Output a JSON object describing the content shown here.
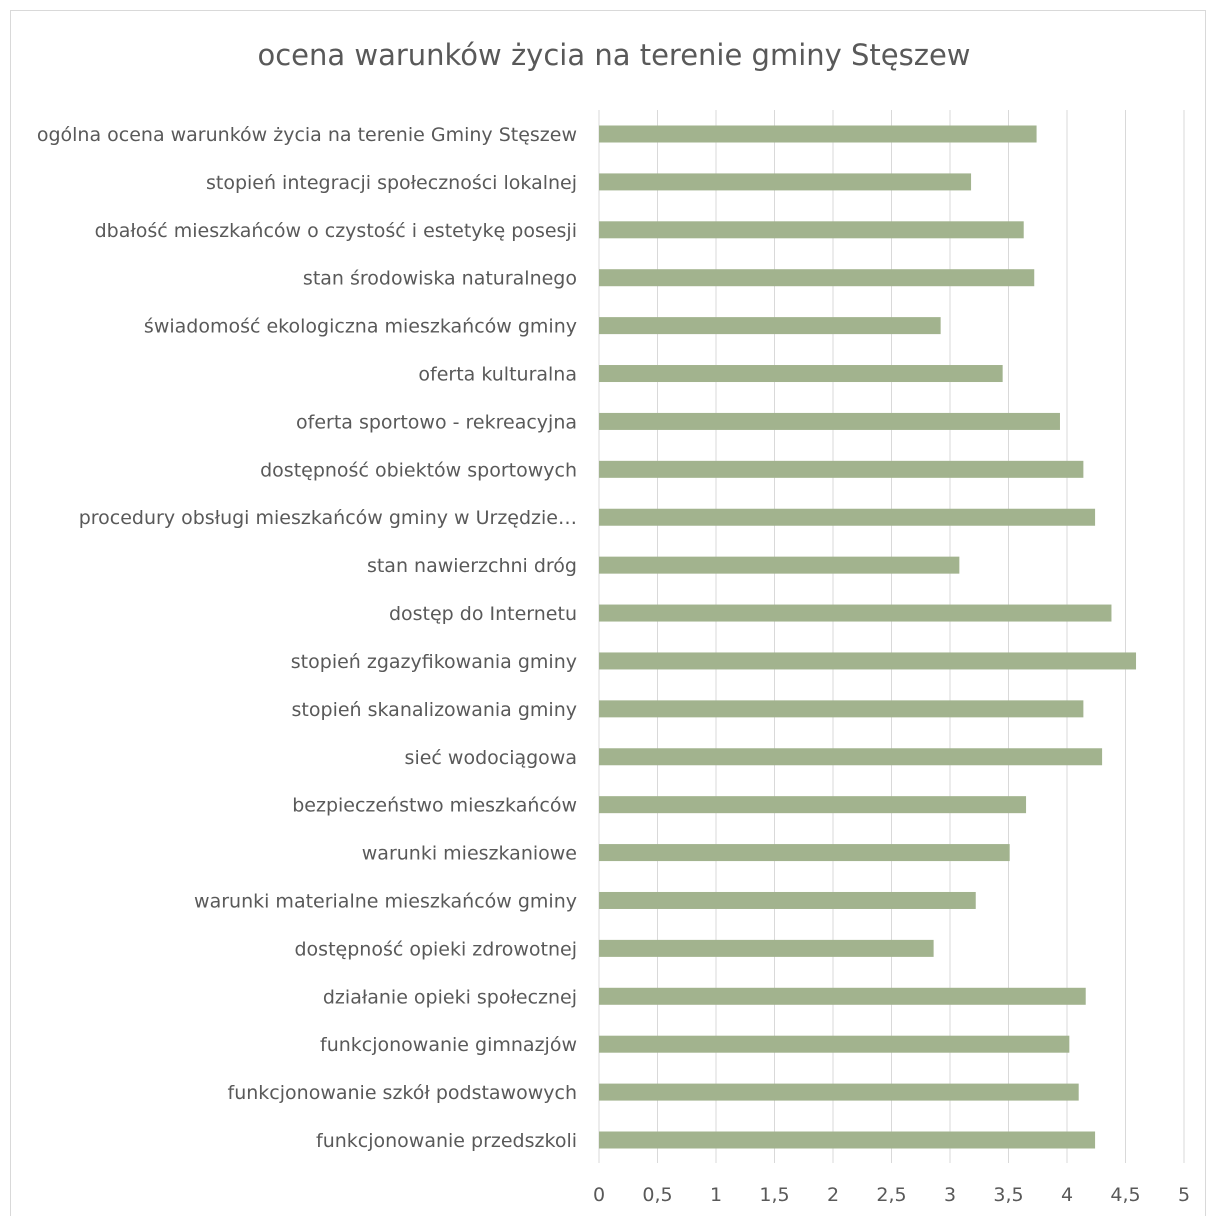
{
  "chart_data": {
    "type": "bar",
    "orientation": "horizontal",
    "title": "ocena warunków życia na terenie gminy Stęszew",
    "xlabel": "",
    "ylabel": "",
    "xlim": [
      0,
      5
    ],
    "x_ticks": [
      "0",
      "0,5",
      "1",
      "1,5",
      "2",
      "2,5",
      "3",
      "3,5",
      "4",
      "4,5",
      "5"
    ],
    "x_tick_values": [
      0,
      0.5,
      1,
      1.5,
      2,
      2.5,
      3,
      3.5,
      4,
      4.5,
      5
    ],
    "grid": "vertical",
    "legend": "none",
    "bar_color": "#a2b38e",
    "categories": [
      "ogólna ocena warunków życia na terenie Gminy Stęszew",
      "stopień integracji społeczności lokalnej",
      "dbałość mieszkańców o czystość i estetykę posesji",
      "stan środowiska naturalnego",
      "świadomość ekologiczna mieszkańców gminy",
      "oferta kulturalna",
      "oferta sportowo - rekreacyjna",
      "dostępność obiektów sportowych",
      "procedury obsługi mieszkańców gminy w Urzędzie…",
      "stan nawierzchni dróg",
      "dostęp do Internetu",
      "stopień zgazyfikowania gminy",
      "stopień skanalizowania gminy",
      "sieć wodociągowa",
      "bezpieczeństwo mieszkańców",
      "warunki mieszkaniowe",
      "warunki materialne mieszkańców gminy",
      "dostępność opieki zdrowotnej",
      "działanie opieki społecznej",
      "funkcjonowanie gimnazjów",
      "funkcjonowanie szkół podstawowych",
      "funkcjonowanie przedszkoli"
    ],
    "values": [
      3.74,
      3.18,
      3.63,
      3.72,
      2.92,
      3.45,
      3.94,
      4.14,
      4.24,
      3.08,
      4.38,
      4.59,
      4.14,
      4.3,
      3.65,
      3.51,
      3.22,
      2.86,
      4.16,
      4.02,
      4.1,
      4.24
    ]
  }
}
